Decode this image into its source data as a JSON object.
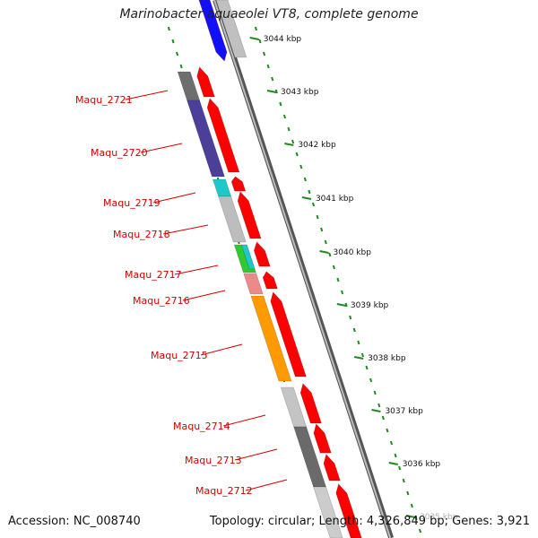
{
  "title": "Marinobacter aquaeolei VT8, complete genome",
  "accession": "Accession: NC_008740",
  "summary": "Topology: circular; Length: 4,326,849 bp; Genes: 3,921",
  "colors": {
    "backbone": "#7a7a7a",
    "forward_feature": "#ff0000",
    "label": "#d40000",
    "tick": "#1e8a1e"
  },
  "ticks": [
    "3044 kbp",
    "3043 kbp",
    "3042 kbp",
    "3041 kbp",
    "3040 kbp",
    "3039 kbp",
    "3038 kbp",
    "3037 kbp",
    "3036 kbp",
    "3035 kbp"
  ],
  "genes": [
    {
      "label": "Maqu_2721",
      "color": "#6e6e6e"
    },
    {
      "label": "Maqu_2720",
      "color": "#4b3f9a"
    },
    {
      "label": "Maqu_2719",
      "color": "#1ec8c8"
    },
    {
      "label": "Maqu_2718",
      "color": "#bdbdbd"
    },
    {
      "label": "Maqu_2717",
      "color": "#32c832"
    },
    {
      "label": "Maqu_2716",
      "color": "#ec8a8a"
    },
    {
      "label": "Maqu_2715",
      "color": "#ff9a00"
    },
    {
      "label": "Maqu_2714",
      "color": "#c4c4c4"
    },
    {
      "label": "Maqu_2713",
      "color": "#6a6a6a"
    },
    {
      "label": "Maqu_2712",
      "color": "#cccccc"
    }
  ],
  "top_features": [
    {
      "color": "#1010ff",
      "strand": "reverse"
    },
    {
      "color": "#c0c0c0",
      "strand": "reverse"
    }
  ]
}
